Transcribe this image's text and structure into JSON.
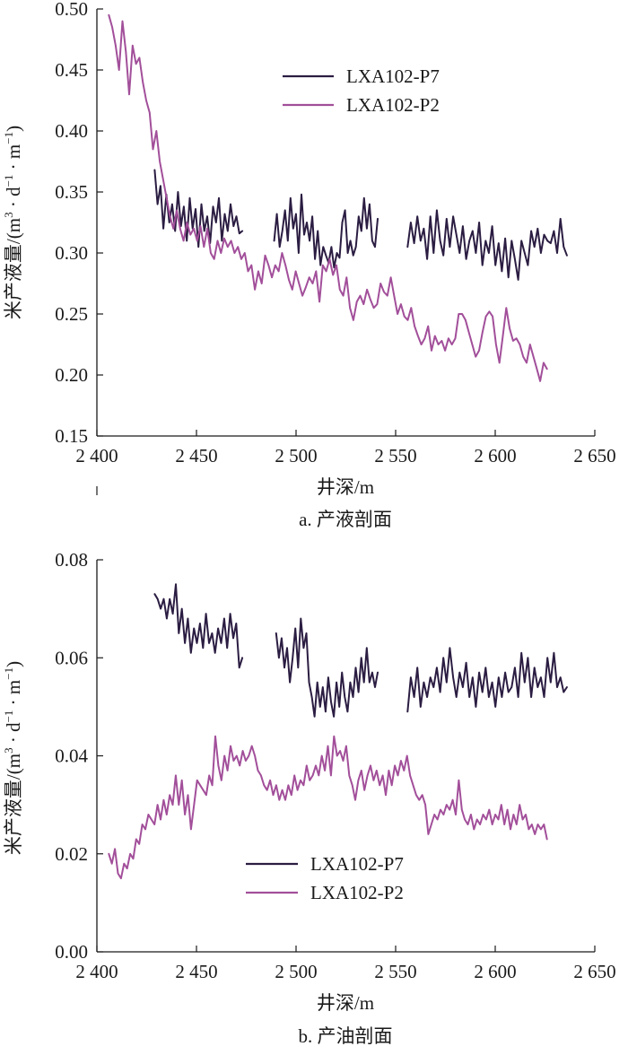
{
  "colors": {
    "p7": "#2b1d42",
    "p2": "#a24f9a"
  },
  "chart_data": [
    {
      "type": "line",
      "caption": "a. 产液剖面",
      "xlabel": "井深/m",
      "ylabel_main": "米产液量/",
      "ylabel_unit_open": "(m",
      "ylabel_unit_exp3": "3",
      "ylabel_unit_dot1": " · d",
      "ylabel_unit_expm1": "−1",
      "ylabel_unit_dot2": " · m",
      "ylabel_unit_expm1b": "−1",
      "ylabel_unit_close": ")",
      "xlim": [
        2400,
        2650
      ],
      "ylim": [
        0.15,
        0.5
      ],
      "xticks": [
        2400,
        2450,
        2500,
        2550,
        2600,
        2650
      ],
      "xtick_labels": [
        "2 400",
        "2 450",
        "2 500",
        "2 550",
        "2 600",
        "2 650"
      ],
      "yticks": [
        0.15,
        0.2,
        0.25,
        0.3,
        0.35,
        0.4,
        0.45,
        0.5
      ],
      "ytick_labels": [
        "0.15",
        "0.20",
        "0.25",
        "0.30",
        "0.35",
        "0.40",
        "0.45",
        "0.50"
      ],
      "legend_position": "top-right",
      "series": [
        {
          "name": "LXA102-P7",
          "color_key": "p7",
          "segments": [
            {
              "x_start": 2429,
              "x_end": 2473,
              "values": [
                0.368,
                0.34,
                0.355,
                0.32,
                0.348,
                0.325,
                0.34,
                0.318,
                0.35,
                0.322,
                0.338,
                0.31,
                0.345,
                0.32,
                0.336,
                0.305,
                0.34,
                0.318,
                0.33,
                0.308,
                0.338,
                0.325,
                0.345,
                0.31,
                0.332,
                0.318,
                0.34,
                0.322,
                0.33,
                0.316,
                0.318
              ]
            },
            {
              "x_start": 2489,
              "x_end": 2541,
              "values": [
                0.31,
                0.332,
                0.305,
                0.318,
                0.335,
                0.31,
                0.345,
                0.32,
                0.332,
                0.3,
                0.348,
                0.315,
                0.325,
                0.31,
                0.33,
                0.295,
                0.318,
                0.29,
                0.305,
                0.298,
                0.292,
                0.305,
                0.288,
                0.3,
                0.296,
                0.325,
                0.335,
                0.3,
                0.31,
                0.298,
                0.305,
                0.33,
                0.318,
                0.345,
                0.32,
                0.34,
                0.31,
                0.305,
                0.328
              ]
            },
            {
              "x_start": 2556,
              "x_end": 2636,
              "values": [
                0.305,
                0.325,
                0.308,
                0.33,
                0.31,
                0.32,
                0.295,
                0.33,
                0.3,
                0.335,
                0.31,
                0.298,
                0.328,
                0.305,
                0.33,
                0.315,
                0.3,
                0.322,
                0.295,
                0.31,
                0.318,
                0.3,
                0.325,
                0.29,
                0.31,
                0.3,
                0.322,
                0.29,
                0.308,
                0.285,
                0.312,
                0.28,
                0.31,
                0.295,
                0.278,
                0.31,
                0.3,
                0.29,
                0.318,
                0.305,
                0.32,
                0.3,
                0.315,
                0.31,
                0.308,
                0.318,
                0.3,
                0.328,
                0.305,
                0.298
              ]
            }
          ]
        },
        {
          "name": "LXA102-P2",
          "color_key": "p2",
          "segments": [
            {
              "x_start": 2406,
              "x_end": 2626,
              "values": [
                0.495,
                0.485,
                0.47,
                0.45,
                0.49,
                0.465,
                0.43,
                0.47,
                0.455,
                0.46,
                0.44,
                0.425,
                0.415,
                0.385,
                0.4,
                0.375,
                0.36,
                0.345,
                0.33,
                0.32,
                0.335,
                0.32,
                0.31,
                0.325,
                0.315,
                0.32,
                0.31,
                0.322,
                0.305,
                0.32,
                0.3,
                0.295,
                0.31,
                0.3,
                0.312,
                0.305,
                0.31,
                0.3,
                0.305,
                0.295,
                0.3,
                0.285,
                0.29,
                0.27,
                0.285,
                0.275,
                0.298,
                0.29,
                0.28,
                0.29,
                0.285,
                0.3,
                0.29,
                0.278,
                0.27,
                0.285,
                0.275,
                0.265,
                0.272,
                0.28,
                0.275,
                0.285,
                0.26,
                0.29,
                0.285,
                0.295,
                0.282,
                0.29,
                0.27,
                0.265,
                0.28,
                0.255,
                0.245,
                0.26,
                0.265,
                0.258,
                0.27,
                0.262,
                0.255,
                0.258,
                0.275,
                0.268,
                0.265,
                0.28,
                0.265,
                0.25,
                0.258,
                0.248,
                0.245,
                0.255,
                0.24,
                0.232,
                0.225,
                0.23,
                0.24,
                0.22,
                0.232,
                0.225,
                0.228,
                0.22,
                0.23,
                0.225,
                0.23,
                0.25,
                0.25,
                0.245,
                0.235,
                0.225,
                0.215,
                0.22,
                0.235,
                0.248,
                0.252,
                0.248,
                0.225,
                0.21,
                0.232,
                0.255,
                0.238,
                0.228,
                0.23,
                0.225,
                0.215,
                0.21,
                0.225,
                0.215,
                0.205,
                0.195,
                0.21,
                0.205
              ]
            }
          ]
        }
      ]
    },
    {
      "type": "line",
      "caption": "b. 产油剖面",
      "xlabel": "井深/m",
      "ylabel_main": "米产液量/",
      "ylabel_unit_open": "(m",
      "ylabel_unit_exp3": "3",
      "ylabel_unit_dot1": " · d",
      "ylabel_unit_expm1": "−1",
      "ylabel_unit_dot2": " · m",
      "ylabel_unit_expm1b": "−1",
      "ylabel_unit_close": ")",
      "xlim": [
        2400,
        2650
      ],
      "ylim": [
        0,
        0.08
      ],
      "xticks": [
        2400,
        2450,
        2500,
        2550,
        2600,
        2650
      ],
      "xtick_labels": [
        "2 400",
        "2 450",
        "2 500",
        "2 550",
        "2 600",
        "2 650"
      ],
      "yticks": [
        0,
        0.02,
        0.04,
        0.06,
        0.08
      ],
      "ytick_labels": [
        "0.00",
        "0.02",
        "0.04",
        "0.06",
        "0.08"
      ],
      "legend_position": "bottom-right",
      "series": [
        {
          "name": "LXA102-P7",
          "color_key": "p7",
          "segments": [
            {
              "x_start": 2429,
              "x_end": 2473,
              "values": [
                0.073,
                0.072,
                0.07,
                0.072,
                0.068,
                0.072,
                0.069,
                0.075,
                0.065,
                0.07,
                0.063,
                0.068,
                0.061,
                0.066,
                0.063,
                0.067,
                0.062,
                0.069,
                0.063,
                0.065,
                0.061,
                0.066,
                0.063,
                0.068,
                0.062,
                0.069,
                0.064,
                0.067,
                0.058,
                0.06
              ]
            },
            {
              "x_start": 2490,
              "x_end": 2541,
              "values": [
                0.065,
                0.06,
                0.064,
                0.058,
                0.062,
                0.055,
                0.06,
                0.066,
                0.058,
                0.068,
                0.062,
                0.065,
                0.055,
                0.052,
                0.048,
                0.055,
                0.05,
                0.054,
                0.049,
                0.056,
                0.051,
                0.048,
                0.055,
                0.05,
                0.057,
                0.052,
                0.049,
                0.055,
                0.052,
                0.058,
                0.053,
                0.06,
                0.055,
                0.062,
                0.055,
                0.057,
                0.054,
                0.057
              ]
            },
            {
              "x_start": 2556,
              "x_end": 2636,
              "values": [
                0.049,
                0.056,
                0.052,
                0.058,
                0.05,
                0.055,
                0.052,
                0.056,
                0.054,
                0.058,
                0.053,
                0.06,
                0.055,
                0.062,
                0.056,
                0.052,
                0.057,
                0.054,
                0.059,
                0.052,
                0.056,
                0.05,
                0.057,
                0.053,
                0.058,
                0.052,
                0.055,
                0.05,
                0.056,
                0.052,
                0.057,
                0.053,
                0.054,
                0.058,
                0.052,
                0.061,
                0.055,
                0.06,
                0.052,
                0.058,
                0.054,
                0.056,
                0.052,
                0.06,
                0.055,
                0.061,
                0.054,
                0.056,
                0.053,
                0.054
              ]
            }
          ]
        },
        {
          "name": "LXA102-P2",
          "color_key": "p2",
          "segments": [
            {
              "x_start": 2406,
              "x_end": 2626,
              "values": [
                0.02,
                0.018,
                0.021,
                0.016,
                0.015,
                0.018,
                0.017,
                0.02,
                0.019,
                0.023,
                0.022,
                0.026,
                0.025,
                0.028,
                0.027,
                0.026,
                0.03,
                0.027,
                0.031,
                0.028,
                0.032,
                0.03,
                0.036,
                0.03,
                0.035,
                0.028,
                0.032,
                0.025,
                0.03,
                0.035,
                0.034,
                0.033,
                0.032,
                0.036,
                0.034,
                0.044,
                0.038,
                0.035,
                0.04,
                0.037,
                0.042,
                0.039,
                0.04,
                0.038,
                0.041,
                0.039,
                0.04,
                0.042,
                0.04,
                0.037,
                0.036,
                0.034,
                0.033,
                0.035,
                0.032,
                0.034,
                0.031,
                0.033,
                0.031,
                0.034,
                0.032,
                0.036,
                0.033,
                0.035,
                0.034,
                0.038,
                0.035,
                0.036,
                0.038,
                0.036,
                0.04,
                0.037,
                0.042,
                0.036,
                0.044,
                0.04,
                0.041,
                0.039,
                0.042,
                0.036,
                0.034,
                0.031,
                0.035,
                0.037,
                0.033,
                0.036,
                0.038,
                0.035,
                0.037,
                0.034,
                0.036,
                0.032,
                0.037,
                0.034,
                0.038,
                0.036,
                0.039,
                0.037,
                0.04,
                0.036,
                0.034,
                0.032,
                0.031,
                0.032,
                0.03,
                0.024,
                0.026,
                0.028,
                0.027,
                0.029,
                0.028,
                0.03,
                0.029,
                0.031,
                0.028,
                0.035,
                0.029,
                0.027,
                0.026,
                0.028,
                0.025,
                0.027,
                0.026,
                0.028,
                0.027,
                0.029,
                0.026,
                0.028,
                0.027,
                0.03,
                0.026,
                0.029,
                0.025,
                0.028,
                0.026,
                0.03,
                0.027,
                0.028,
                0.025,
                0.026,
                0.024,
                0.026,
                0.025,
                0.026,
                0.023
              ]
            }
          ]
        }
      ]
    }
  ]
}
